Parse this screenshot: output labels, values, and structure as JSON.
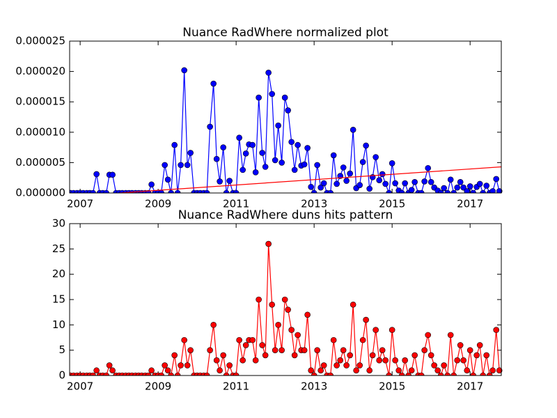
{
  "chart_data": [
    {
      "type": "line",
      "title": "Nuance RadWhere normalized plot",
      "x": [
        2006.75,
        2006.83,
        2006.92,
        2007.0,
        2007.08,
        2007.17,
        2007.25,
        2007.33,
        2007.42,
        2007.5,
        2007.58,
        2007.67,
        2007.75,
        2007.83,
        2007.92,
        2008.0,
        2008.08,
        2008.17,
        2008.25,
        2008.33,
        2008.42,
        2008.5,
        2008.58,
        2008.67,
        2008.75,
        2008.83,
        2008.92,
        2009.0,
        2009.08,
        2009.17,
        2009.25,
        2009.33,
        2009.42,
        2009.5,
        2009.58,
        2009.67,
        2009.75,
        2009.83,
        2009.92,
        2010.0,
        2010.08,
        2010.17,
        2010.25,
        2010.33,
        2010.42,
        2010.5,
        2010.58,
        2010.67,
        2010.75,
        2010.83,
        2010.92,
        2011.0,
        2011.08,
        2011.17,
        2011.25,
        2011.33,
        2011.42,
        2011.5,
        2011.58,
        2011.67,
        2011.75,
        2011.83,
        2011.92,
        2012.0,
        2012.08,
        2012.17,
        2012.25,
        2012.33,
        2012.42,
        2012.5,
        2012.58,
        2012.67,
        2012.75,
        2012.83,
        2012.92,
        2013.0,
        2013.08,
        2013.17,
        2013.25,
        2013.33,
        2013.42,
        2013.5,
        2013.58,
        2013.67,
        2013.75,
        2013.83,
        2013.92,
        2014.0,
        2014.08,
        2014.17,
        2014.25,
        2014.33,
        2014.42,
        2014.5,
        2014.58,
        2014.67,
        2014.75,
        2014.83,
        2014.92,
        2015.0,
        2015.08,
        2015.17,
        2015.25,
        2015.33,
        2015.42,
        2015.5,
        2015.58,
        2015.67,
        2015.75,
        2015.83,
        2015.92,
        2016.0,
        2016.08,
        2016.17,
        2016.25,
        2016.33,
        2016.42,
        2016.5,
        2016.58,
        2016.67,
        2016.75,
        2016.83,
        2016.92,
        2017.0,
        2017.08,
        2017.17,
        2017.25,
        2017.33,
        2017.42,
        2017.5,
        2017.58,
        2017.67,
        2017.75
      ],
      "series": [
        {
          "color": "#0000ff",
          "marker": "o",
          "values": [
            0,
            0,
            0,
            0,
            0,
            0,
            0,
            0,
            3.1e-06,
            0,
            0,
            0,
            3e-06,
            3e-06,
            0,
            0,
            0,
            0,
            0,
            0,
            0,
            0,
            0,
            0,
            0,
            1.4e-06,
            0,
            0,
            0,
            4.6e-06,
            2.2e-06,
            0,
            7.9e-06,
            0,
            4.6e-06,
            2.02e-05,
            4.6e-06,
            6.6e-06,
            0,
            0,
            0,
            0,
            0,
            1.09e-05,
            1.8e-05,
            5.6e-06,
            1.9e-06,
            7.5e-06,
            0,
            2e-06,
            0,
            0,
            9.1e-06,
            3.8e-06,
            6.5e-06,
            8e-06,
            7.9e-06,
            3.4e-06,
            1.57e-05,
            6.6e-06,
            4.3e-06,
            1.98e-05,
            1.63e-05,
            5.4e-06,
            1.11e-05,
            5e-06,
            1.57e-05,
            1.36e-05,
            8.4e-06,
            3.8e-06,
            7.9e-06,
            4.5e-06,
            4.7e-06,
            7.4e-06,
            1e-06,
            0,
            4.6e-06,
            9e-07,
            1.6e-06,
            0,
            0,
            6.2e-06,
            1.5e-06,
            2.8e-06,
            4.2e-06,
            2e-06,
            3.2e-06,
            1.04e-05,
            8e-07,
            1.3e-06,
            5.1e-06,
            7.8e-06,
            7e-07,
            2.6e-06,
            5.9e-06,
            2.1e-06,
            3.1e-06,
            1.5e-06,
            0,
            4.9e-06,
            1.6e-06,
            4e-07,
            0,
            1.6e-06,
            0,
            5e-07,
            1.8e-06,
            0,
            0,
            1.9e-06,
            4.1e-06,
            1.8e-06,
            9e-07,
            4e-07,
            0,
            8e-07,
            0,
            2.2e-06,
            0,
            9e-07,
            1.8e-06,
            9e-07,
            3e-07,
            1.1e-06,
            0,
            1e-06,
            1.5e-06,
            0,
            1.2e-06,
            0,
            3e-07,
            2.3e-06,
            3e-07
          ]
        },
        {
          "color": "#ff0000",
          "x": [
            2008.0,
            2017.8
          ],
          "values": [
            0,
            4.3e-06
          ]
        }
      ],
      "xlim": [
        2006.73,
        2017.8
      ],
      "xticks": [
        2007,
        2009,
        2011,
        2013,
        2015,
        2017
      ],
      "ylim": [
        0,
        2.5e-05
      ],
      "yticks": [
        {
          "value": 0,
          "label": "0.000000"
        },
        {
          "value": 5e-06,
          "label": "0.000005"
        },
        {
          "value": 1e-05,
          "label": "0.000010"
        },
        {
          "value": 1.5e-05,
          "label": "0.000015"
        },
        {
          "value": 2e-05,
          "label": "0.000020"
        },
        {
          "value": 2.5e-05,
          "label": "0.000025"
        }
      ]
    },
    {
      "type": "line",
      "title": "Nuance RadWhere duns hits pattern",
      "x": [
        2006.75,
        2006.83,
        2006.92,
        2007.0,
        2007.08,
        2007.17,
        2007.25,
        2007.33,
        2007.42,
        2007.5,
        2007.58,
        2007.67,
        2007.75,
        2007.83,
        2007.92,
        2008.0,
        2008.08,
        2008.17,
        2008.25,
        2008.33,
        2008.42,
        2008.5,
        2008.58,
        2008.67,
        2008.75,
        2008.83,
        2008.92,
        2009.0,
        2009.08,
        2009.17,
        2009.25,
        2009.33,
        2009.42,
        2009.5,
        2009.58,
        2009.67,
        2009.75,
        2009.83,
        2009.92,
        2010.0,
        2010.08,
        2010.17,
        2010.25,
        2010.33,
        2010.42,
        2010.5,
        2010.58,
        2010.67,
        2010.75,
        2010.83,
        2010.92,
        2011.0,
        2011.08,
        2011.17,
        2011.25,
        2011.33,
        2011.42,
        2011.5,
        2011.58,
        2011.67,
        2011.75,
        2011.83,
        2011.92,
        2012.0,
        2012.08,
        2012.17,
        2012.25,
        2012.33,
        2012.42,
        2012.5,
        2012.58,
        2012.67,
        2012.75,
        2012.83,
        2012.92,
        2013.0,
        2013.08,
        2013.17,
        2013.25,
        2013.33,
        2013.42,
        2013.5,
        2013.58,
        2013.67,
        2013.75,
        2013.83,
        2013.92,
        2014.0,
        2014.08,
        2014.17,
        2014.25,
        2014.33,
        2014.42,
        2014.5,
        2014.58,
        2014.67,
        2014.75,
        2014.83,
        2014.92,
        2015.0,
        2015.08,
        2015.17,
        2015.25,
        2015.33,
        2015.42,
        2015.5,
        2015.58,
        2015.67,
        2015.75,
        2015.83,
        2015.92,
        2016.0,
        2016.08,
        2016.17,
        2016.25,
        2016.33,
        2016.42,
        2016.5,
        2016.58,
        2016.67,
        2016.75,
        2016.83,
        2016.92,
        2017.0,
        2017.08,
        2017.17,
        2017.25,
        2017.33,
        2017.42,
        2017.5,
        2017.58,
        2017.67,
        2017.75
      ],
      "series": [
        {
          "color": "#ff0000",
          "marker": "o",
          "values": [
            0,
            0,
            0,
            0,
            0,
            0,
            0,
            0,
            1,
            0,
            0,
            0,
            2,
            1,
            0,
            0,
            0,
            0,
            0,
            0,
            0,
            0,
            0,
            0,
            0,
            1,
            0,
            0,
            0,
            2,
            1,
            0,
            4,
            0,
            2,
            7,
            2,
            5,
            0,
            0,
            0,
            0,
            0,
            5,
            10,
            3,
            1,
            4,
            0,
            2,
            0,
            0,
            7,
            3,
            6,
            7,
            7,
            3,
            15,
            6,
            4,
            26,
            14,
            5,
            10,
            5,
            15,
            13,
            9,
            4,
            8,
            5,
            5,
            12,
            1,
            0,
            5,
            1,
            2,
            0,
            0,
            7,
            2,
            3,
            5,
            2,
            4,
            14,
            1,
            2,
            7,
            11,
            1,
            4,
            9,
            3,
            5,
            3,
            0,
            9,
            3,
            1,
            0,
            3,
            0,
            1,
            4,
            0,
            0,
            5,
            8,
            4,
            2,
            1,
            0,
            2,
            0,
            8,
            0,
            3,
            6,
            3,
            1,
            5,
            0,
            4,
            6,
            0,
            4,
            0,
            1,
            9,
            1
          ]
        }
      ],
      "xlim": [
        2006.73,
        2017.8
      ],
      "xticks": [
        2007,
        2009,
        2011,
        2013,
        2015,
        2017
      ],
      "ylim": [
        0,
        30
      ],
      "yticks": [
        0,
        5,
        10,
        15,
        20,
        25,
        30
      ]
    }
  ]
}
